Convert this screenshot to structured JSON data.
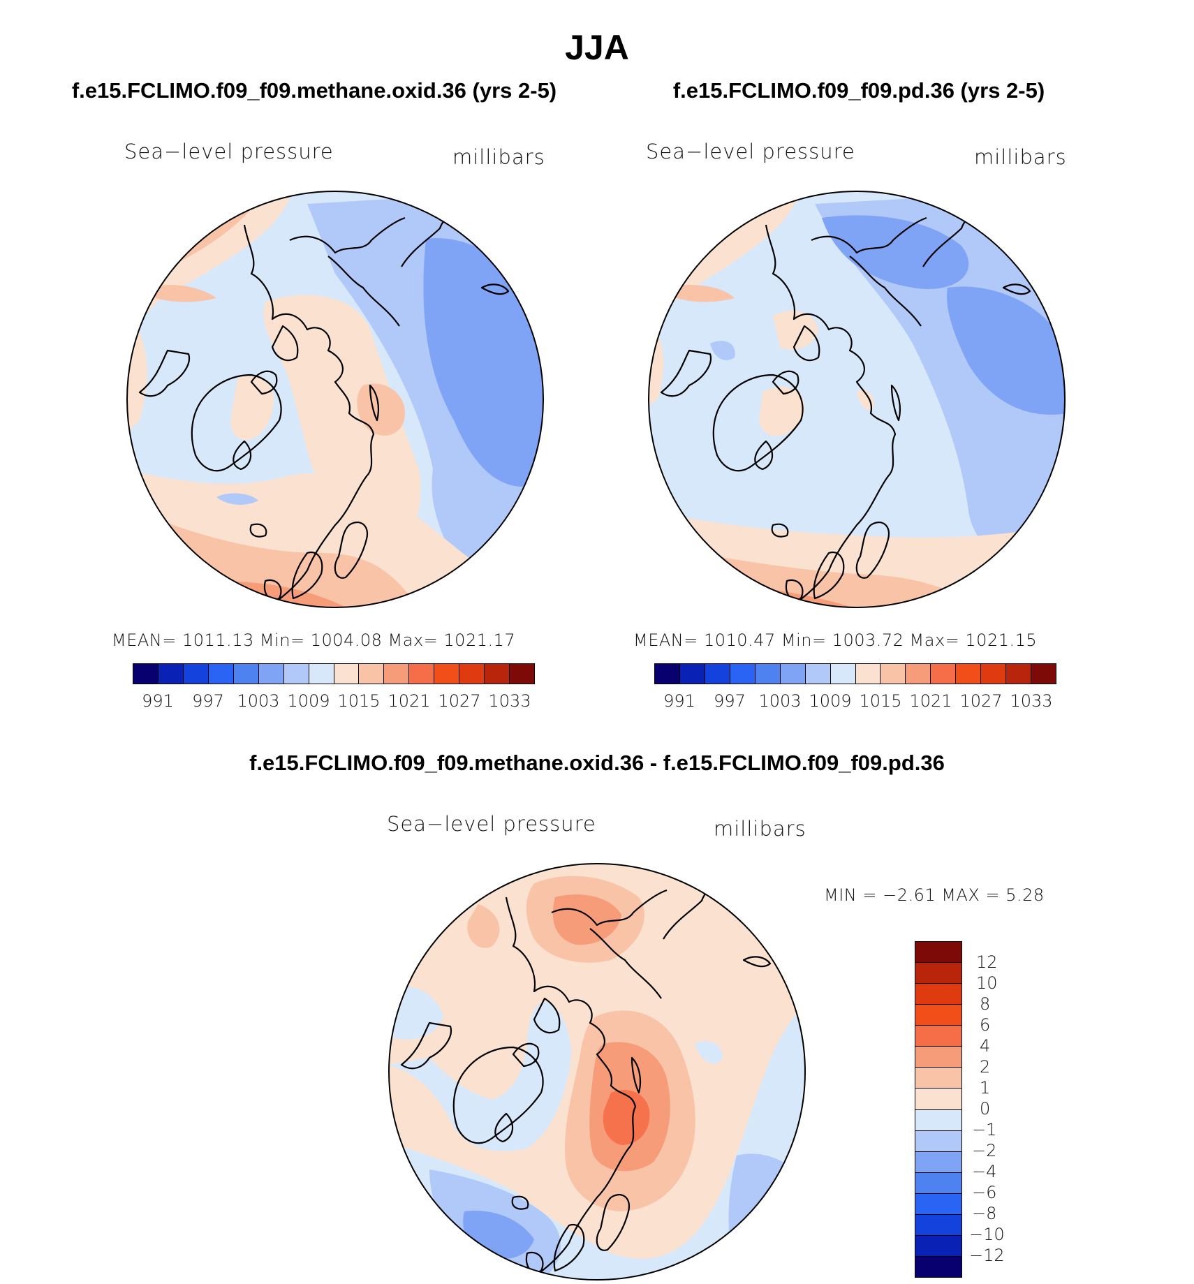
{
  "page": {
    "season_title": "JJA"
  },
  "panels": [
    {
      "title": "f.e15.FCLIMO.f09_f09.methane.oxid.36 (yrs 2-5)",
      "variable_label": "Sea−level pressure",
      "units_label": "millibars",
      "stats_text": "MEAN=  1011.13    Min=  1004.08    Max=  1021.17",
      "mean": 1011.13,
      "min": 1004.08,
      "max": 1021.17,
      "colorbar": {
        "ticks": [
          "991",
          "997",
          "1003",
          "1009",
          "1015",
          "1021",
          "1027",
          "1033"
        ]
      }
    },
    {
      "title": "f.e15.FCLIMO.f09_f09.pd.36 (yrs 2-5)",
      "variable_label": "Sea−level pressure",
      "units_label": "millibars",
      "stats_text": "MEAN=  1010.47    Min=  1003.72    Max=  1021.15",
      "mean": 1010.47,
      "min": 1003.72,
      "max": 1021.15,
      "colorbar": {
        "ticks": [
          "991",
          "997",
          "1003",
          "1009",
          "1015",
          "1021",
          "1027",
          "1033"
        ]
      }
    }
  ],
  "difference": {
    "title": "f.e15.FCLIMO.f09_f09.methane.oxid.36 - f.e15.FCLIMO.f09_f09.pd.36",
    "variable_label": "Sea−level pressure",
    "units_label": "millibars",
    "stats_text": "MIN =    −2.61  MAX =      5.28",
    "min": -2.61,
    "max": 5.28,
    "colorbar": {
      "ticks": [
        "12",
        "10",
        "8",
        "6",
        "4",
        "2",
        "1",
        "0",
        "−1",
        "−2",
        "−4",
        "−6",
        "−8",
        "−10",
        "−12"
      ]
    }
  },
  "colors": {
    "main_scale": [
      "#08006e",
      "#0a21b6",
      "#1442dc",
      "#2a64f4",
      "#4e82f0",
      "#7fa4f5",
      "#b1c9f8",
      "#d8e8fb",
      "#fbe2d0",
      "#f9c3a8",
      "#f79c78",
      "#f56e47",
      "#f24e1a",
      "#e03a10",
      "#b8250a",
      "#7e0a08"
    ],
    "diff_scale": [
      "#08006e",
      "#0a21b6",
      "#1442dc",
      "#2a64f4",
      "#4e82f0",
      "#7fa4f5",
      "#b1c9f8",
      "#d8e8fb",
      "#fbe2d0",
      "#f9c3a8",
      "#f79c78",
      "#f56e47",
      "#f24e1a",
      "#e03a10",
      "#b8250a",
      "#7e0a08"
    ],
    "background": "#ffffff"
  }
}
